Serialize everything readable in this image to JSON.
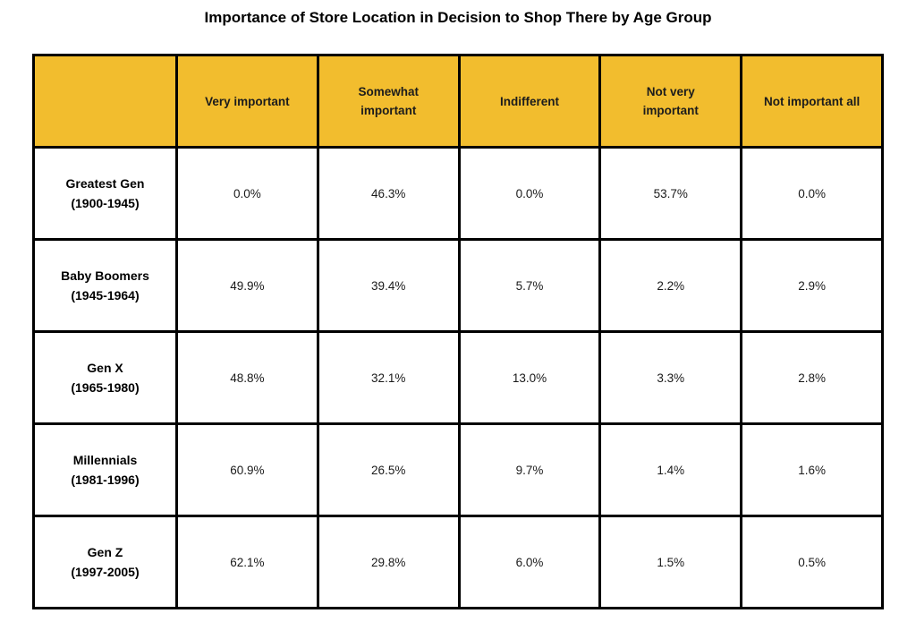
{
  "title": "Importance of Store Location in Decision to Shop There by Age Group",
  "colors": {
    "header_bg": "#F2BD2E",
    "border": "#000000",
    "header_text": "#1c1c1c",
    "cell_text": "#1a1a1a",
    "background": "#ffffff"
  },
  "table": {
    "header": [
      "",
      "Very important",
      "Somewhat\nimportant",
      "Indifferent",
      "Not very\nimportant",
      "Not important all"
    ],
    "rows": [
      {
        "label": "Greatest Gen",
        "years": "(1900-1945)",
        "values": [
          "0.0%",
          "46.3%",
          "0.0%",
          "53.7%",
          "0.0%"
        ]
      },
      {
        "label": "Baby Boomers",
        "years": "(1945-1964)",
        "values": [
          "49.9%",
          "39.4%",
          "5.7%",
          "2.2%",
          "2.9%"
        ]
      },
      {
        "label": "Gen X",
        "years": "(1965-1980)",
        "values": [
          "48.8%",
          "32.1%",
          "13.0%",
          "3.3%",
          "2.8%"
        ]
      },
      {
        "label": "Millennials",
        "years": "(1981-1996)",
        "values": [
          "60.9%",
          "26.5%",
          "9.7%",
          "1.4%",
          "1.6%"
        ]
      },
      {
        "label": "Gen Z",
        "years": "(1997-2005)",
        "values": [
          "62.1%",
          "29.8%",
          "6.0%",
          "1.5%",
          "0.5%"
        ]
      }
    ]
  },
  "chart_data": {
    "type": "table",
    "title": "Importance of Store Location in Decision to Shop There by Age Group",
    "columns": [
      "",
      "Very important",
      "Somewhat important",
      "Indifferent",
      "Not very important",
      "Not important all"
    ],
    "rows": [
      {
        "category": "Greatest Gen (1900-1945)",
        "values_percent": [
          0.0,
          46.3,
          0.0,
          53.7,
          0.0
        ]
      },
      {
        "category": "Baby Boomers (1945-1964)",
        "values_percent": [
          49.9,
          39.4,
          5.7,
          2.2,
          2.9
        ]
      },
      {
        "category": "Gen X (1965-1980)",
        "values_percent": [
          48.8,
          32.1,
          13.0,
          3.3,
          2.8
        ]
      },
      {
        "category": "Millennials (1981-1996)",
        "values_percent": [
          60.9,
          26.5,
          9.7,
          1.4,
          1.6
        ]
      },
      {
        "category": "Gen Z (1997-2005)",
        "values_percent": [
          62.1,
          29.8,
          6.0,
          1.5,
          0.5
        ]
      }
    ],
    "legend": "none",
    "grid": "full black cell borders, gold header row"
  }
}
